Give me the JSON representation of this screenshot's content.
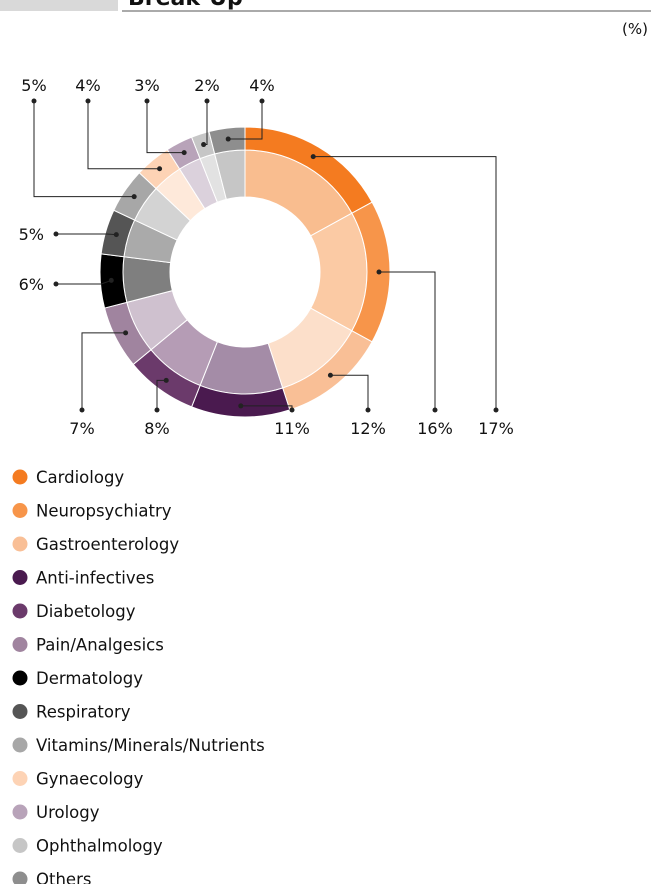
{
  "chart_data": {
    "type": "donut",
    "title": "Break-Up",
    "unit_label": "(%)",
    "categories": [
      "Cardiology",
      "Neuropsychiatry",
      "Gastroenterology",
      "Anti-infectives",
      "Diabetology",
      "Pain/Analgesics",
      "Dermatology",
      "Respiratory",
      "Vitamins/Minerals/Nutrients",
      "Gynaecology",
      "Urology",
      "Ophthalmology",
      "Others"
    ],
    "values": [
      17,
      16,
      12,
      11,
      8,
      7,
      6,
      5,
      5,
      4,
      3,
      2,
      4
    ],
    "value_labels": [
      "17%",
      "16%",
      "12%",
      "11%",
      "8%",
      "7%",
      "6%",
      "5%",
      "5%",
      "4%",
      "3%",
      "2%",
      "4%"
    ],
    "colors": [
      "#f47b20",
      "#f7954a",
      "#f9bf96",
      "#4a1a4f",
      "#6b3a6b",
      "#a0849f",
      "#000000",
      "#555555",
      "#a7a7a7",
      "#fdd3b5",
      "#b8a3b9",
      "#c6c6c6",
      "#8e8e8e"
    ]
  }
}
